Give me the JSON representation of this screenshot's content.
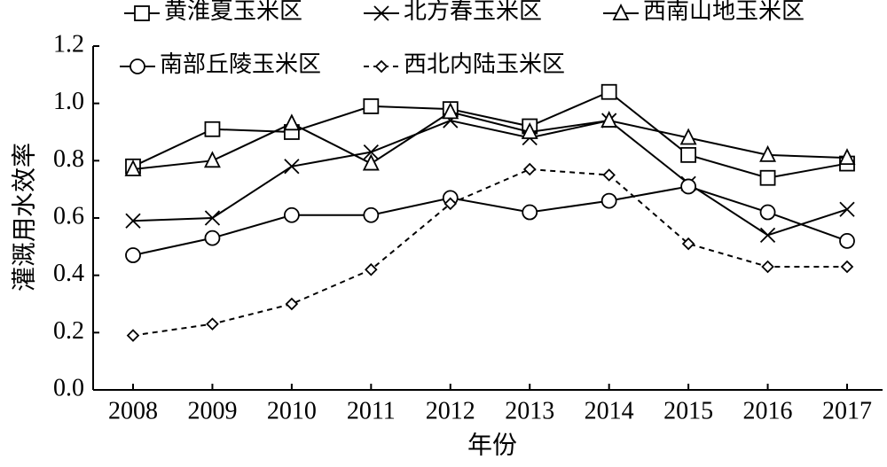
{
  "chart_data": {
    "type": "line",
    "x_label": "年份",
    "y_label": "灌溉用水效率",
    "categories": [
      "2008",
      "2009",
      "2010",
      "2011",
      "2012",
      "2013",
      "2014",
      "2015",
      "2016",
      "2017"
    ],
    "series": [
      {
        "name": "黄淮夏玉米区",
        "color": "#000000",
        "marker": "square",
        "dashed": false,
        "values": [
          0.78,
          0.91,
          0.9,
          0.99,
          0.98,
          0.92,
          1.04,
          0.82,
          0.74,
          0.79
        ]
      },
      {
        "name": "北方春玉米区",
        "color": "#000000",
        "marker": "x",
        "dashed": false,
        "values": [
          0.59,
          0.6,
          0.78,
          0.83,
          0.94,
          0.88,
          0.94,
          0.72,
          0.54,
          0.63
        ]
      },
      {
        "name": "西南山地玉米区",
        "color": "#000000",
        "marker": "triangle",
        "dashed": false,
        "values": [
          0.77,
          0.8,
          0.93,
          0.79,
          0.97,
          0.9,
          0.94,
          0.88,
          0.82,
          0.81
        ]
      },
      {
        "name": "南部丘陵玉米区",
        "color": "#000000",
        "marker": "circle",
        "dashed": false,
        "values": [
          0.47,
          0.53,
          0.61,
          0.61,
          0.67,
          0.62,
          0.66,
          0.71,
          0.62,
          0.52
        ]
      },
      {
        "name": "西北内陆玉米区",
        "color": "#000000",
        "marker": "diamond",
        "dashed": true,
        "values": [
          0.19,
          0.23,
          0.3,
          0.42,
          0.65,
          0.77,
          0.75,
          0.51,
          0.43,
          0.43
        ]
      }
    ],
    "ylim": [
      0,
      1.2
    ],
    "yticks": [
      {
        "value": 0,
        "label": "0.0"
      },
      {
        "value": 0.2,
        "label": "0.2"
      },
      {
        "value": 0.4,
        "label": "0.4"
      },
      {
        "value": 0.6,
        "label": "0.6"
      },
      {
        "value": 0.8,
        "label": "0.8"
      },
      {
        "value": 1,
        "label": "1.0"
      },
      {
        "value": 1.2,
        "label": "1.2"
      }
    ],
    "legend": "top"
  }
}
